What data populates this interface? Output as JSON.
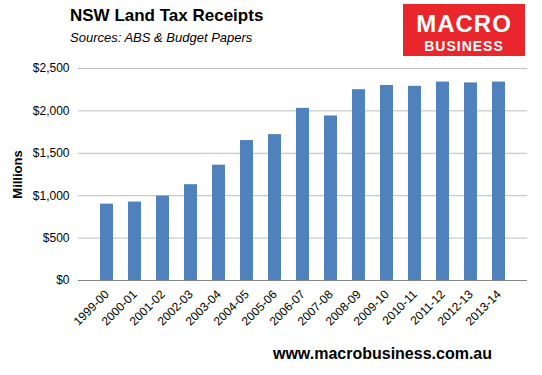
{
  "chart_data": {
    "type": "bar",
    "title": "NSW Land Tax Receipts",
    "subtitle": "Sources: ABS & Budget Papers",
    "y_label": "Millions",
    "annotations": [
      "MACRO",
      "BUSINESS",
      "www.macrobusiness.com.au"
    ],
    "categories": [
      "1999-00",
      "2000-01",
      "2001-02",
      "2002-03",
      "2003-04",
      "2004-05",
      "2005-06",
      "2006-07",
      "2007-08",
      "2008-09",
      "2009-10",
      "2010-11",
      "2011-12",
      "2012-13",
      "2013-14"
    ],
    "values": [
      900,
      925,
      995,
      1130,
      1360,
      1650,
      1720,
      2030,
      1940,
      2250,
      2300,
      2290,
      2340,
      2330,
      2340
    ],
    "color": "#4f81bd",
    "ylim": [
      0,
      2500
    ],
    "yticks": [
      {
        "value": 0,
        "label": "$0"
      },
      {
        "value": 500,
        "label": "$500"
      },
      {
        "value": 1000,
        "label": "$1,000"
      },
      {
        "value": 1500,
        "label": "$1,500"
      },
      {
        "value": 2000,
        "label": "$2,000"
      },
      {
        "value": 2500,
        "label": "$2,500"
      }
    ],
    "grid": true
  }
}
